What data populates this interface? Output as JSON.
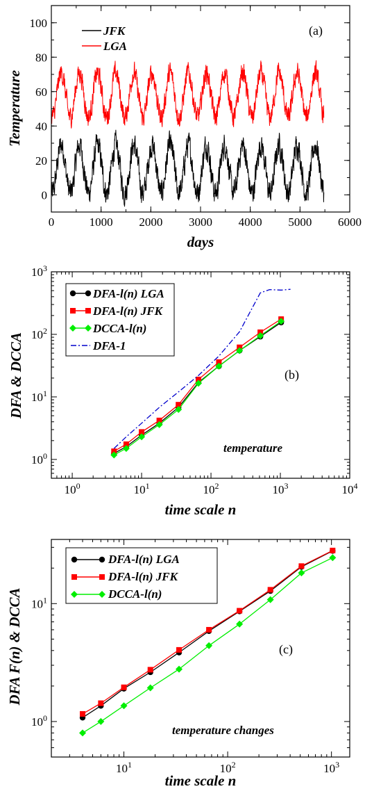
{
  "chart_data": [
    {
      "type": "line",
      "panel": "(a)",
      "xlabel": "days",
      "ylabel": "Temperature",
      "xlim": [
        0,
        6000
      ],
      "ylim": [
        -10,
        110
      ],
      "xticks": [
        0,
        1000,
        2000,
        3000,
        4000,
        5000,
        6000
      ],
      "yticks": [
        0,
        20,
        40,
        60,
        80,
        100
      ],
      "xtick_labels": [
        "0",
        "1000",
        "2000",
        "3000",
        "4000",
        "5000",
        "6000"
      ],
      "ytick_labels": [
        "0",
        "20",
        "40",
        "60",
        "80",
        "100"
      ],
      "legend_position": "top-left",
      "series": [
        {
          "name": "JFK",
          "color": "#000000",
          "days": 5480,
          "period_days": 365,
          "phase_peak_day": 200,
          "mean": 15,
          "amplitude": 14,
          "noise": 6
        },
        {
          "name": "LGA",
          "color": "#ff0000",
          "days": 5480,
          "period_days": 365,
          "phase_peak_day": 200,
          "mean": 58,
          "amplitude": 13,
          "noise": 5
        }
      ]
    },
    {
      "type": "line",
      "panel": "(b)",
      "xlabel": "time scale n",
      "ylabel": "DFA & DCCA",
      "xscale": "log",
      "yscale": "log",
      "xlim": [
        0.5,
        10000
      ],
      "ylim": [
        0.5,
        1000
      ],
      "xticks": [
        1,
        10,
        100,
        1000,
        10000
      ],
      "yticks": [
        1,
        10,
        100,
        1000
      ],
      "xtick_labels": [
        [
          "10",
          "0"
        ],
        [
          "10",
          "1"
        ],
        [
          "10",
          "2"
        ],
        [
          "10",
          "3"
        ],
        [
          "10",
          "4"
        ]
      ],
      "ytick_labels": [
        [
          "10",
          "0"
        ],
        [
          "10",
          "1"
        ],
        [
          "10",
          "2"
        ],
        [
          "10",
          "3"
        ]
      ],
      "annotation": "temperature",
      "legend_position": "top-left",
      "series": [
        {
          "name": "DFA-l(n) LGA",
          "color": "#000000",
          "marker": "circle",
          "x": [
            4,
            6,
            10,
            18,
            34,
            66,
            130,
            258,
            514,
            1026
          ],
          "y": [
            1.25,
            1.6,
            2.45,
            3.8,
            6.8,
            17,
            31,
            55,
            92,
            155
          ]
        },
        {
          "name": "DFA-l(n) JFK",
          "color": "#ff0000",
          "marker": "square",
          "x": [
            4,
            6,
            10,
            18,
            34,
            66,
            130,
            258,
            514,
            1026
          ],
          "y": [
            1.35,
            1.75,
            2.75,
            4.2,
            7.5,
            19,
            36,
            62,
            108,
            175
          ]
        },
        {
          "name": "DCCA-l(n)",
          "color": "#00ee00",
          "marker": "diamond",
          "x": [
            4,
            6,
            10,
            18,
            34,
            66,
            130,
            258,
            514,
            1026
          ],
          "y": [
            1.18,
            1.5,
            2.3,
            3.6,
            6.3,
            16.5,
            31,
            55,
            95,
            162
          ]
        },
        {
          "name": "DFA-1",
          "color": "#0000cc",
          "dash": "dashdot",
          "x": [
            4,
            6,
            10,
            18,
            34,
            66,
            130,
            258,
            514,
            700,
            1026,
            1400
          ],
          "y": [
            1.5,
            2.3,
            3.8,
            6.8,
            12,
            22,
            45,
            110,
            460,
            520,
            510,
            525
          ]
        }
      ]
    },
    {
      "type": "line",
      "panel": "(c)",
      "xlabel": "time scale n",
      "ylabel": "DFA F(n) & DCCA",
      "xscale": "log",
      "yscale": "log",
      "xlim": [
        2,
        1500
      ],
      "ylim": [
        0.5,
        35
      ],
      "xticks": [
        10,
        100,
        1000
      ],
      "yticks": [
        1,
        10
      ],
      "xtick_labels": [
        [
          "10",
          "1"
        ],
        [
          "10",
          "2"
        ],
        [
          "10",
          "3"
        ]
      ],
      "ytick_labels": [
        [
          "10",
          "0"
        ],
        [
          "10",
          "1"
        ]
      ],
      "annotation": "temperature changes",
      "legend_position": "top-left",
      "series": [
        {
          "name": "DFA-l(n) LGA",
          "color": "#000000",
          "marker": "circle",
          "x": [
            4,
            6,
            10,
            18,
            34,
            66,
            130,
            258,
            514,
            1026
          ],
          "y": [
            1.08,
            1.36,
            1.9,
            2.62,
            3.85,
            5.85,
            8.6,
            12.8,
            20.5,
            28
          ]
        },
        {
          "name": "DFA-l(n) JFK",
          "color": "#ff0000",
          "marker": "square",
          "x": [
            4,
            6,
            10,
            18,
            34,
            66,
            130,
            258,
            514,
            1026
          ],
          "y": [
            1.16,
            1.43,
            1.95,
            2.75,
            4.05,
            6.0,
            8.7,
            13.1,
            20.8,
            28.2
          ]
        },
        {
          "name": "DCCA-l(n)",
          "color": "#00ee00",
          "marker": "diamond",
          "x": [
            4,
            6,
            10,
            18,
            34,
            66,
            130,
            258,
            514,
            1026
          ],
          "y": [
            0.8,
            1.0,
            1.36,
            1.93,
            2.78,
            4.4,
            6.7,
            10.8,
            18.2,
            24.5
          ]
        }
      ]
    }
  ]
}
